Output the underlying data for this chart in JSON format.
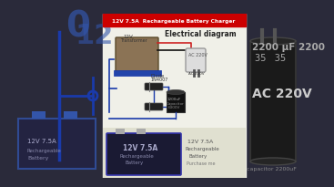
{
  "title_text": "12V 7.5A  Rechargeable Battery Charger",
  "title_bg": "#cc0000",
  "title_fg": "#ffffff",
  "subtitle": "Electrical diagram",
  "subtitle_color": "#222222",
  "bg_dark": "#2a2a3a",
  "center_bg": "#f0f0e8",
  "ac_text": "AC 220V",
  "ac_color": "#cccccc",
  "capacitor_text": "2200 μF 2200",
  "capacitor_sub": "35   35",
  "cap_color": "#aaaaaa",
  "wire_blue": "#1a3aaa",
  "wire_red": "#cc2222",
  "transformer_color": "#8B7355",
  "plug_color": "#dddddd",
  "bottom_bg": "#e0e0d0",
  "battery_dark": "#1a1a33",
  "battery_edge": "#3333aa"
}
